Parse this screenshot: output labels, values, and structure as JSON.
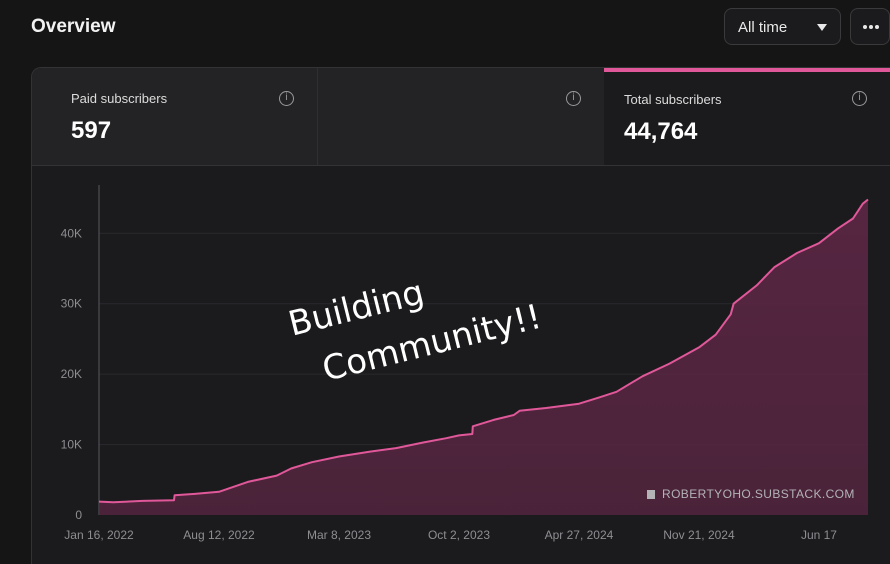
{
  "header": {
    "title": "Overview",
    "range_select": {
      "selected": "All time"
    },
    "more_icon": "more-horizontal-icon"
  },
  "stats": [
    {
      "label": "Paid subscribers",
      "value": "597",
      "active": false
    },
    {
      "label": "",
      "value": "",
      "active": false
    },
    {
      "label": "Total subscribers",
      "value": "44,764",
      "active": true
    }
  ],
  "colors": {
    "accent": "#e0589a",
    "area_fill": "#5a2643",
    "background": "#151516"
  },
  "annotation": {
    "line1": "Building",
    "line2": "Community!!"
  },
  "watermark": "ROBERTYOHO.SUBSTACK.COM",
  "chart_data": {
    "type": "area",
    "title": "",
    "xlabel": "",
    "ylabel": "",
    "x_tick_labels": [
      "Jan 16, 2022",
      "Aug 12, 2022",
      "Mar 8, 2023",
      "Oct 2, 2023",
      "Apr 27, 2024",
      "Nov 21, 2024",
      "Jun 17"
    ],
    "y_tick_labels": [
      "0",
      "10K",
      "20K",
      "30K",
      "40K"
    ],
    "ylim": [
      0,
      47000
    ],
    "xlim": [
      "2022-01-16",
      "2025-09-10"
    ],
    "grid": true,
    "series": [
      {
        "name": "",
        "x": [
          "2022-01-16",
          "2022-02-10",
          "2022-04-01",
          "2022-05-26",
          "2022-05-27",
          "2022-07-01",
          "2022-08-12",
          "2022-10-01",
          "2022-11-20",
          "2022-12-15",
          "2023-01-20",
          "2023-03-08",
          "2023-05-01",
          "2023-06-15",
          "2023-08-01",
          "2023-09-10",
          "2023-10-02",
          "2023-10-25",
          "2023-10-26",
          "2023-12-01",
          "2024-01-05",
          "2024-01-15",
          "2024-03-01",
          "2024-04-27",
          "2024-06-01",
          "2024-07-01",
          "2024-08-15",
          "2024-10-01",
          "2024-11-21",
          "2024-12-20",
          "2025-01-15",
          "2025-01-20",
          "2025-03-01",
          "2025-04-01",
          "2025-05-10",
          "2025-06-17",
          "2025-07-20",
          "2025-08-15",
          "2025-09-01",
          "2025-09-10"
        ],
        "values": [
          1900,
          1800,
          2000,
          2100,
          2800,
          3000,
          3300,
          4700,
          5600,
          6600,
          7500,
          8300,
          9000,
          9500,
          10300,
          10900,
          11300,
          11500,
          12600,
          13500,
          14200,
          14800,
          15200,
          15800,
          16700,
          17500,
          19700,
          21500,
          23800,
          25600,
          28500,
          30000,
          32600,
          35200,
          37200,
          38600,
          40700,
          42100,
          44200,
          44800
        ]
      }
    ]
  }
}
